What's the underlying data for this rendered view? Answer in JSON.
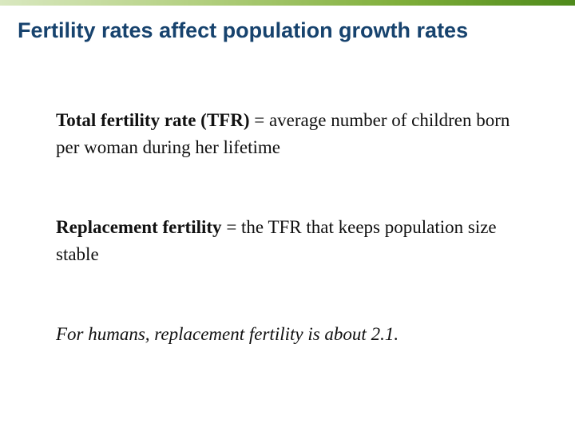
{
  "slide": {
    "title": "Fertility rates affect population growth rates",
    "accent_color": "#6a9e2a",
    "title_color": "#17436e"
  },
  "definitions": [
    {
      "term": "Total fertility rate (TFR)",
      "definition": " = average number of children born per woman during her lifetime"
    },
    {
      "term": "Replacement fertility",
      "definition": " = the TFR that keeps population size stable"
    }
  ],
  "note": "For humans, replacement fertility is about 2.1."
}
